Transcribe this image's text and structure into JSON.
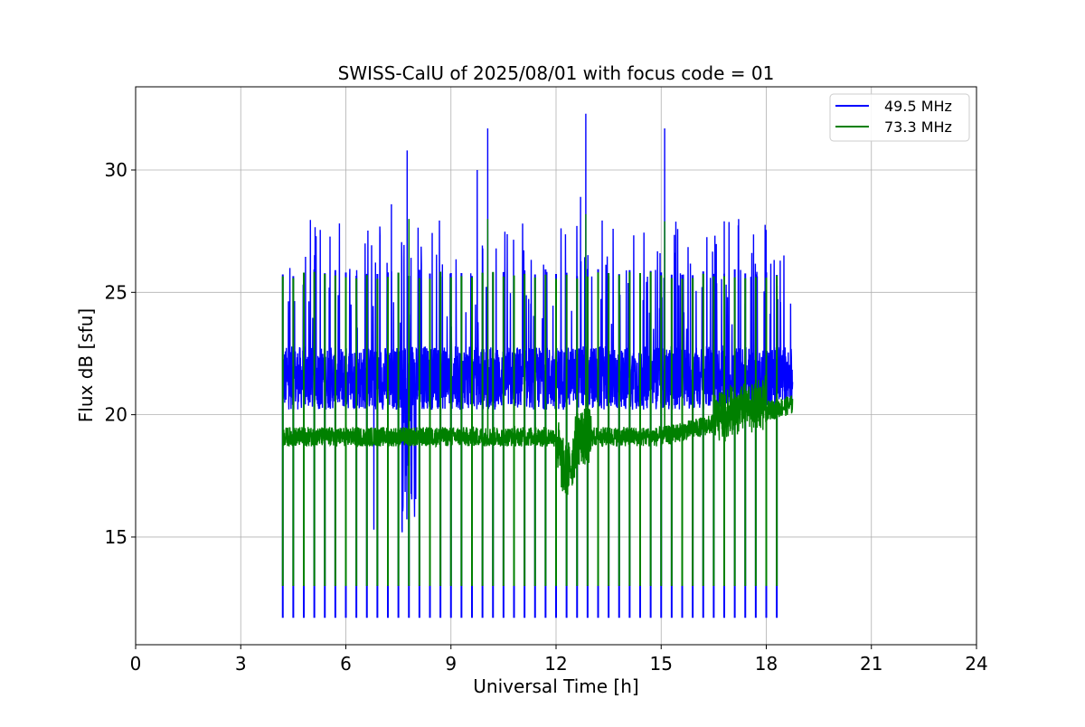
{
  "chart_data": {
    "type": "line",
    "title": "SWISS-CalU of 2025/08/01 with focus code = 01",
    "xlabel": "Universal Time [h]",
    "ylabel": "Flux dB [sfu]",
    "xlim": [
      0,
      24
    ],
    "ylim": [
      10.6,
      33.4
    ],
    "xticks": [
      0,
      3,
      6,
      9,
      12,
      15,
      18,
      21,
      24
    ],
    "yticks": [
      15,
      20,
      25,
      30
    ],
    "grid": true,
    "legend_position": "top-right",
    "data_range_x": [
      4.2,
      18.75
    ],
    "calibration_pulse_count": 48,
    "calibration_pulse_interval_h": 0.3,
    "series": [
      {
        "name": "49.5 MHz",
        "color": "#0000ff",
        "baseline": 21.5,
        "calibration_low": 11.7,
        "calibration_high": 25.8,
        "notable_peaks": [
          {
            "x": 7.75,
            "y": 30.8
          },
          {
            "x": 9.75,
            "y": 30.0
          },
          {
            "x": 10.05,
            "y": 31.7
          },
          {
            "x": 12.85,
            "y": 32.3
          },
          {
            "x": 15.1,
            "y": 31.7
          },
          {
            "x": 12.7,
            "y": 28.9
          },
          {
            "x": 7.3,
            "y": 28.6
          },
          {
            "x": 16.8,
            "y": 27.9
          },
          {
            "x": 6.8,
            "y": 15.3
          },
          {
            "x": 7.8,
            "y": 14.6
          }
        ]
      },
      {
        "name": "73.3 MHz",
        "color": "#008000",
        "baseline": 19.1,
        "calibration_low": 13.0,
        "calibration_high": 25.7,
        "notable_peaks": [
          {
            "x": 7.8,
            "y": 28.0
          },
          {
            "x": 10.05,
            "y": 28.0
          },
          {
            "x": 12.85,
            "y": 28.2
          },
          {
            "x": 15.1,
            "y": 27.9
          },
          {
            "x": 12.3,
            "y": 17.0
          }
        ]
      }
    ]
  }
}
